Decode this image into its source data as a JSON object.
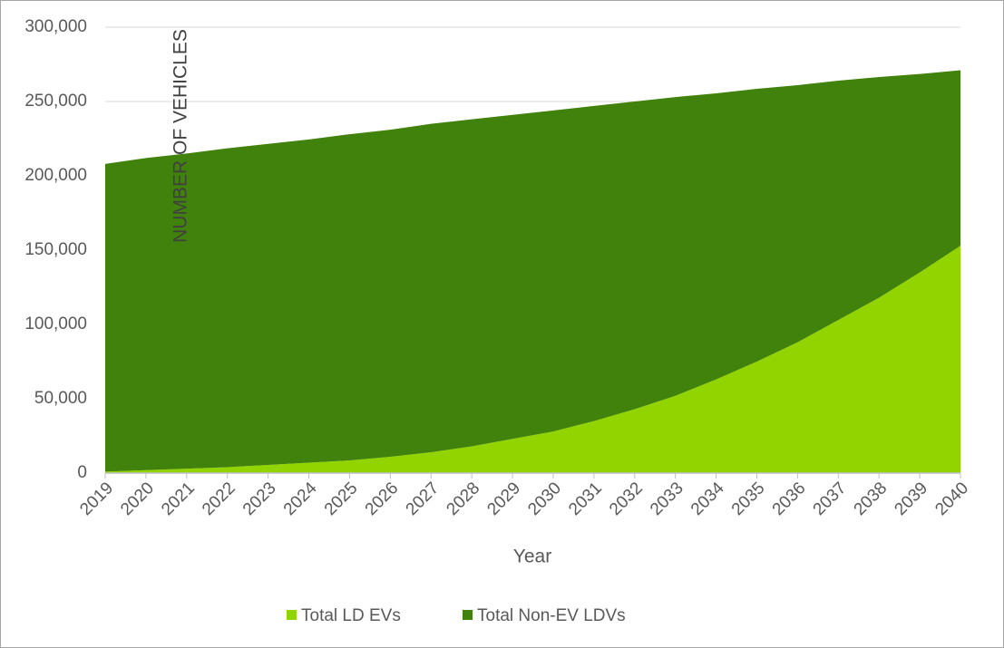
{
  "chart_data": {
    "type": "stacked_area",
    "x_label": "Year",
    "y_label": "NUMBER OF VEHICLES",
    "categories": [
      "2019",
      "2020",
      "2021",
      "2022",
      "2023",
      "2024",
      "2025",
      "2026",
      "2027",
      "2028",
      "2029",
      "2030",
      "2031",
      "2032",
      "2033",
      "2034",
      "2035",
      "2036",
      "2037",
      "2038",
      "2039",
      "2040"
    ],
    "series": [
      {
        "name": "Total LD EVs",
        "color": "#92d400",
        "values": [
          1000,
          2000,
          3000,
          4000,
          5500,
          7000,
          8500,
          11000,
          14000,
          18000,
          23000,
          28000,
          35000,
          43000,
          52000,
          63000,
          75000,
          88000,
          103000,
          118000,
          135000,
          153000
        ]
      },
      {
        "name": "Total Non-EV LDVs",
        "color": "#40820b",
        "values": [
          207000,
          210000,
          212000,
          214500,
          216000,
          217500,
          219500,
          220000,
          221000,
          220000,
          218000,
          216000,
          212000,
          207000,
          201000,
          192500,
          183500,
          173000,
          161000,
          148500,
          133500,
          118000
        ]
      }
    ],
    "ylim": [
      0,
      300000
    ],
    "yticks": [
      0,
      {
        "value": 50000,
        "label": "50,000"
      },
      {
        "value": 100000,
        "label": "100,000"
      },
      {
        "value": 150000,
        "label": "150,000"
      },
      {
        "value": 200000,
        "label": "200,000"
      },
      {
        "value": 250000,
        "label": "250,000"
      },
      {
        "value": 300000,
        "label": "300,000"
      }
    ],
    "grid": true,
    "legend": "bottom"
  }
}
